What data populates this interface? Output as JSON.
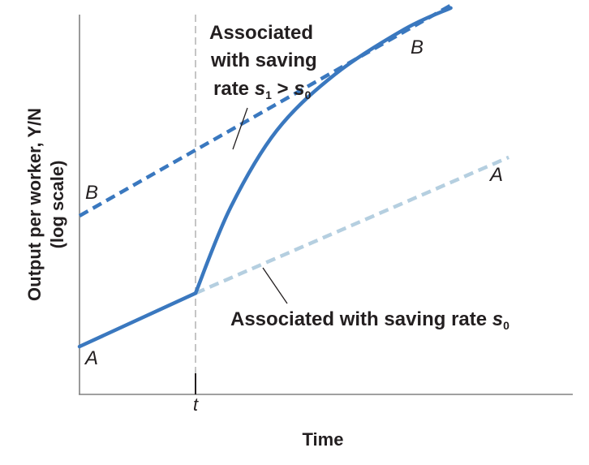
{
  "chart_data": {
    "type": "line",
    "title": "",
    "xlabel": "Time",
    "ylabel_line1": "Output per worker, Y/N",
    "ylabel_line2": "(log scale)",
    "y_scale": "log",
    "grid": false,
    "x_ticks": [
      "t"
    ],
    "series": [
      {
        "name": "A",
        "style": "solid",
        "color": "#3a78bf",
        "segment": "before t",
        "points": [
          [
            0,
            0.0
          ],
          [
            1,
            1.0
          ]
        ]
      },
      {
        "name": "",
        "style": "solid",
        "color": "#3a78bf",
        "segment": "after t, converging to B",
        "points": [
          [
            1,
            1.0
          ],
          [
            1.3,
            2.6
          ],
          [
            1.7,
            4.05
          ],
          [
            2.2,
            5.1
          ],
          [
            2.8,
            5.95
          ],
          [
            3.2,
            6.35
          ]
        ]
      },
      {
        "name": "A",
        "style": "dashed",
        "color": "#b5cfe0",
        "points": [
          [
            1,
            1.0
          ],
          [
            3.7,
            3.55
          ]
        ]
      },
      {
        "name": "B",
        "style": "dashed",
        "color": "#3a78bf",
        "points": [
          [
            0,
            2.45
          ],
          [
            3.2,
            6.4
          ]
        ]
      }
    ],
    "annotations": {
      "upper": {
        "line1": "Associated",
        "line2": "with saving",
        "rate_word": "rate ",
        "s": "s",
        "sub1": "1",
        "gt": " > ",
        "s0": "s",
        "sub0": "0"
      },
      "lower": {
        "text": "Associated with saving rate ",
        "s": "s",
        "sub0": "0"
      }
    },
    "line_labels": {
      "A_left": "A",
      "A_right": "A",
      "B_left": "B",
      "B_right": "B"
    },
    "colors": {
      "accent_blue": "#3a78bf",
      "light_blue": "#b5cfe0",
      "axis": "#808080",
      "text": "#231f20"
    }
  }
}
